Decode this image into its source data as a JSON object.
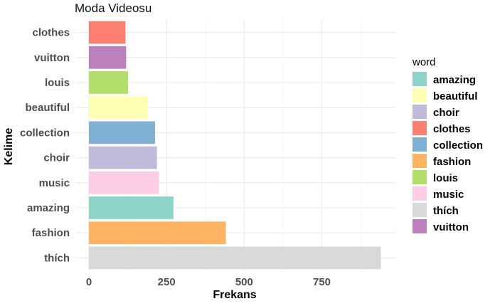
{
  "chart_data": {
    "type": "bar",
    "orientation": "horizontal",
    "title": "Moda Videosu",
    "xlabel": "Frekans",
    "ylabel": "Kelime",
    "xlim": [
      0,
      940
    ],
    "xticks": [
      0,
      250,
      500,
      750
    ],
    "grid": true,
    "legend_title": "word",
    "legend_position": "right",
    "categories": [
      "clothes",
      "vuitton",
      "louis",
      "beautiful",
      "collection",
      "choir",
      "music",
      "amazing",
      "fashion",
      "thích"
    ],
    "values": [
      118,
      120,
      126,
      190,
      213,
      219,
      226,
      272,
      441,
      940
    ],
    "legend_items": [
      {
        "label": "amazing",
        "color": "#8DD3C7"
      },
      {
        "label": "beautiful",
        "color": "#FFFFB3"
      },
      {
        "label": "choir",
        "color": "#BEBADA"
      },
      {
        "label": "clothes",
        "color": "#FB8072"
      },
      {
        "label": "collection",
        "color": "#80B1D3"
      },
      {
        "label": "fashion",
        "color": "#FDB462"
      },
      {
        "label": "louis",
        "color": "#B3DE69"
      },
      {
        "label": "music",
        "color": "#FCCDE5"
      },
      {
        "label": "thích",
        "color": "#D9D9D9"
      },
      {
        "label": "vuitton",
        "color": "#BC80BD"
      }
    ]
  }
}
